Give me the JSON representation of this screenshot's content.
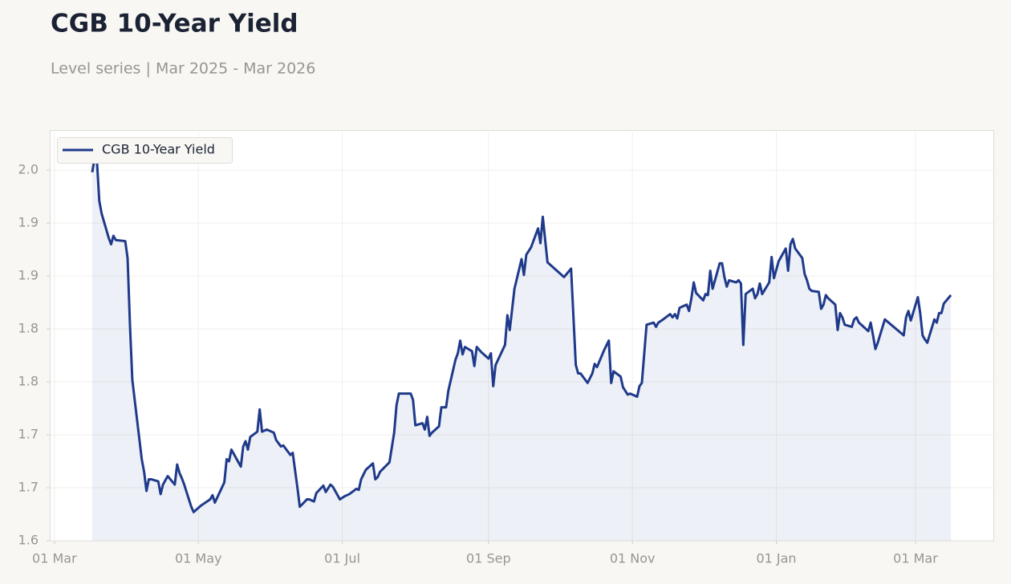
{
  "chart_data": {
    "type": "line",
    "title": "CGB 10-Year Yield",
    "subtitle": "Level series | Mar 2025 - Mar 2026",
    "x": [
      "2025-03-17",
      "2025-03-18",
      "2025-03-19",
      "2025-03-20",
      "2025-03-21",
      "2025-03-24",
      "2025-03-25",
      "2025-03-26",
      "2025-03-27",
      "2025-03-31",
      "2025-04-01",
      "2025-04-02",
      "2025-04-03",
      "2025-04-07",
      "2025-04-08",
      "2025-04-09",
      "2025-04-10",
      "2025-04-11",
      "2025-04-14",
      "2025-04-15",
      "2025-04-16",
      "2025-04-18",
      "2025-04-21",
      "2025-04-22",
      "2025-04-23",
      "2025-04-24",
      "2025-04-25",
      "2025-04-28",
      "2025-04-29",
      "2025-05-02",
      "2025-05-06",
      "2025-05-07",
      "2025-05-08",
      "2025-05-12",
      "2025-05-13",
      "2025-05-14",
      "2025-05-15",
      "2025-05-16",
      "2025-05-19",
      "2025-05-20",
      "2025-05-21",
      "2025-05-22",
      "2025-05-23",
      "2025-05-26",
      "2025-05-27",
      "2025-05-28",
      "2025-05-30",
      "2025-06-02",
      "2025-06-03",
      "2025-06-05",
      "2025-06-06",
      "2025-06-09",
      "2025-06-10",
      "2025-06-12",
      "2025-06-13",
      "2025-06-16",
      "2025-06-17",
      "2025-06-19",
      "2025-06-20",
      "2025-06-23",
      "2025-06-24",
      "2025-06-26",
      "2025-06-27",
      "2025-06-30",
      "2025-07-02",
      "2025-07-04",
      "2025-07-07",
      "2025-07-08",
      "2025-07-09",
      "2025-07-11",
      "2025-07-14",
      "2025-07-15",
      "2025-07-16",
      "2025-07-17",
      "2025-07-21",
      "2025-07-23",
      "2025-07-24",
      "2025-07-25",
      "2025-07-28",
      "2025-07-29",
      "2025-07-30",
      "2025-07-31",
      "2025-08-01",
      "2025-08-04",
      "2025-08-05",
      "2025-08-06",
      "2025-08-07",
      "2025-08-08",
      "2025-08-11",
      "2025-08-12",
      "2025-08-14",
      "2025-08-15",
      "2025-08-18",
      "2025-08-19",
      "2025-08-20",
      "2025-08-21",
      "2025-08-22",
      "2025-08-25",
      "2025-08-26",
      "2025-08-27",
      "2025-08-29",
      "2025-09-01",
      "2025-09-02",
      "2025-09-03",
      "2025-09-04",
      "2025-09-08",
      "2025-09-09",
      "2025-09-10",
      "2025-09-12",
      "2025-09-15",
      "2025-09-16",
      "2025-09-17",
      "2025-09-19",
      "2025-09-22",
      "2025-09-23",
      "2025-09-24",
      "2025-09-26",
      "2025-10-03",
      "2025-10-06",
      "2025-10-08",
      "2025-10-09",
      "2025-10-10",
      "2025-10-13",
      "2025-10-15",
      "2025-10-16",
      "2025-10-17",
      "2025-10-20",
      "2025-10-22",
      "2025-10-23",
      "2025-10-24",
      "2025-10-27",
      "2025-10-28",
      "2025-10-30",
      "2025-10-31",
      "2025-11-03",
      "2025-11-04",
      "2025-11-05",
      "2025-11-07",
      "2025-11-10",
      "2025-11-11",
      "2025-11-12",
      "2025-11-14",
      "2025-11-17",
      "2025-11-18",
      "2025-11-19",
      "2025-11-20",
      "2025-11-21",
      "2025-11-24",
      "2025-11-25",
      "2025-11-26",
      "2025-11-27",
      "2025-11-28",
      "2025-12-01",
      "2025-12-02",
      "2025-12-03",
      "2025-12-04",
      "2025-12-05",
      "2025-12-08",
      "2025-12-09",
      "2025-12-10",
      "2025-12-11",
      "2025-12-12",
      "2025-12-15",
      "2025-12-16",
      "2025-12-17",
      "2025-12-18",
      "2025-12-19",
      "2025-12-22",
      "2025-12-23",
      "2025-12-24",
      "2025-12-25",
      "2025-12-26",
      "2025-12-29",
      "2025-12-30",
      "2025-12-31",
      "2026-01-02",
      "2026-01-05",
      "2026-01-06",
      "2026-01-07",
      "2026-01-08",
      "2026-01-09",
      "2026-01-12",
      "2026-01-13",
      "2026-01-14",
      "2026-01-15",
      "2026-01-16",
      "2026-01-19",
      "2026-01-20",
      "2026-01-21",
      "2026-01-22",
      "2026-01-23",
      "2026-01-26",
      "2026-01-27",
      "2026-01-28",
      "2026-01-29",
      "2026-01-30",
      "2026-02-02",
      "2026-02-03",
      "2026-02-04",
      "2026-02-05",
      "2026-02-06",
      "2026-02-09",
      "2026-02-10",
      "2026-02-11",
      "2026-02-12",
      "2026-02-13",
      "2026-02-16",
      "2026-02-24",
      "2026-02-25",
      "2026-02-26",
      "2026-02-27",
      "2026-03-02",
      "2026-03-03",
      "2026-03-04",
      "2026-03-05",
      "2026-03-06",
      "2026-03-09",
      "2026-03-10",
      "2026-03-11",
      "2026-03-12",
      "2026-03-13",
      "2026-03-16"
    ],
    "series": [
      {
        "name": "CGB 10-Year Yield",
        "color": "#1f3a8a",
        "values": [
          1.988,
          2.001,
          1.999,
          1.961,
          1.949,
          1.926,
          1.92,
          1.928,
          1.924,
          1.923,
          1.907,
          1.844,
          1.792,
          1.717,
          1.705,
          1.687,
          1.698,
          1.698,
          1.696,
          1.684,
          1.693,
          1.701,
          1.693,
          1.712,
          1.704,
          1.699,
          1.693,
          1.672,
          1.667,
          1.673,
          1.679,
          1.683,
          1.676,
          1.695,
          1.717,
          1.715,
          1.726,
          1.722,
          1.71,
          1.729,
          1.734,
          1.726,
          1.738,
          1.743,
          1.764,
          1.743,
          1.745,
          1.742,
          1.735,
          1.729,
          1.73,
          1.721,
          1.723,
          1.69,
          1.672,
          1.679,
          1.679,
          1.677,
          1.685,
          1.692,
          1.686,
          1.693,
          1.691,
          1.679,
          1.682,
          1.684,
          1.689,
          1.688,
          1.698,
          1.707,
          1.713,
          1.698,
          1.7,
          1.705,
          1.714,
          1.742,
          1.768,
          1.779,
          1.779,
          1.779,
          1.779,
          1.773,
          1.749,
          1.751,
          1.745,
          1.757,
          1.739,
          1.742,
          1.748,
          1.766,
          1.766,
          1.782,
          1.811,
          1.817,
          1.829,
          1.816,
          1.823,
          1.819,
          1.805,
          1.823,
          1.818,
          1.812,
          1.817,
          1.786,
          1.806,
          1.825,
          1.853,
          1.839,
          1.878,
          1.906,
          1.891,
          1.91,
          1.917,
          1.935,
          1.921,
          1.946,
          1.903,
          1.889,
          1.897,
          1.806,
          1.798,
          1.798,
          1.789,
          1.798,
          1.807,
          1.804,
          1.82,
          1.829,
          1.789,
          1.8,
          1.795,
          1.785,
          1.778,
          1.779,
          1.776,
          1.786,
          1.789,
          1.844,
          1.846,
          1.842,
          1.846,
          1.849,
          1.854,
          1.851,
          1.854,
          1.85,
          1.86,
          1.863,
          1.857,
          1.869,
          1.884,
          1.874,
          1.867,
          1.873,
          1.872,
          1.895,
          1.878,
          1.902,
          1.902,
          1.889,
          1.88,
          1.886,
          1.884,
          1.886,
          1.883,
          1.825,
          1.873,
          1.878,
          1.869,
          1.873,
          1.883,
          1.873,
          1.884,
          1.908,
          1.888,
          1.904,
          1.916,
          1.895,
          1.92,
          1.925,
          1.916,
          1.907,
          1.892,
          1.886,
          1.878,
          1.876,
          1.875,
          1.859,
          1.863,
          1.872,
          1.869,
          1.863,
          1.839,
          1.855,
          1.851,
          1.844,
          1.842,
          1.849,
          1.851,
          1.846,
          1.844,
          1.838,
          1.846,
          1.834,
          1.821,
          1.827,
          1.849,
          1.834,
          1.851,
          1.857,
          1.848,
          1.87,
          1.855,
          1.834,
          1.83,
          1.827,
          1.849,
          1.846,
          1.855,
          1.855,
          1.864,
          1.872
        ]
      }
    ],
    "xlim": [
      "2025-02-27",
      "2026-04-03"
    ],
    "xticks": [
      {
        "value": "2025-03-01",
        "label": "01 Mar"
      },
      {
        "value": "2025-05-01",
        "label": "01 May"
      },
      {
        "value": "2025-07-01",
        "label": "01 Jul"
      },
      {
        "value": "2025-09-01",
        "label": "01 Sep"
      },
      {
        "value": "2025-11-01",
        "label": "01 Nov"
      },
      {
        "value": "2026-01-01",
        "label": "01 Jan"
      },
      {
        "value": "2026-03-01",
        "label": "01 Mar"
      }
    ],
    "ylim": [
      1.64,
      2.028
    ],
    "yticks": [
      {
        "value": 1.64,
        "label": "1.6"
      },
      {
        "value": 1.69,
        "label": "1.7"
      },
      {
        "value": 1.74,
        "label": "1.7"
      },
      {
        "value": 1.79,
        "label": "1.8"
      },
      {
        "value": 1.84,
        "label": "1.8"
      },
      {
        "value": 1.89,
        "label": "1.9"
      },
      {
        "value": 1.94,
        "label": "1.9"
      },
      {
        "value": 1.99,
        "label": "2.0"
      }
    ],
    "grid": true,
    "legend": "upper left"
  }
}
